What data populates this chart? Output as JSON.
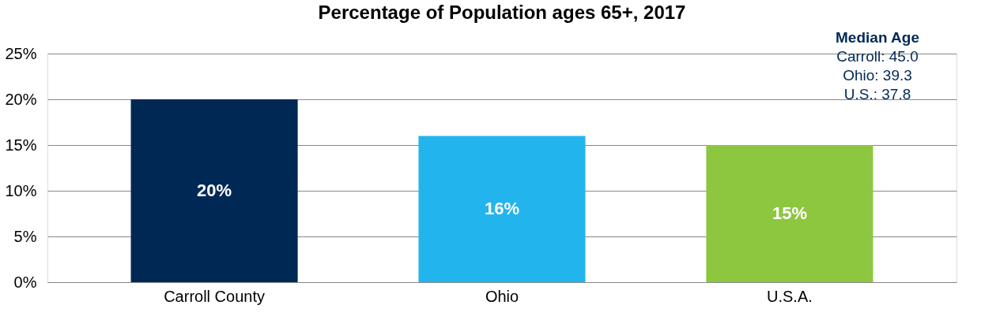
{
  "chart_data": {
    "type": "bar",
    "title": "Percentage of Population ages 65+, 2017",
    "categories": [
      "Carroll County",
      "Ohio",
      "U.S.A."
    ],
    "values": [
      20,
      16,
      15
    ],
    "colors": [
      "#002855",
      "#22b5ed",
      "#8dc63f"
    ],
    "value_labels": [
      "20%",
      "16%",
      "15%"
    ],
    "ylim": [
      0,
      25
    ],
    "yticks": [
      {
        "value": 0,
        "label": "0%"
      },
      {
        "value": 5,
        "label": "5%"
      },
      {
        "value": 10,
        "label": "10%"
      },
      {
        "value": 15,
        "label": "15%"
      },
      {
        "value": 20,
        "label": "20%"
      },
      {
        "value": 25,
        "label": "25%"
      }
    ],
    "grid": "y",
    "annotations": [
      "Median Age",
      "Carroll: 45.0",
      "Ohio: 39.3",
      "U.S.: 37.8"
    ]
  }
}
